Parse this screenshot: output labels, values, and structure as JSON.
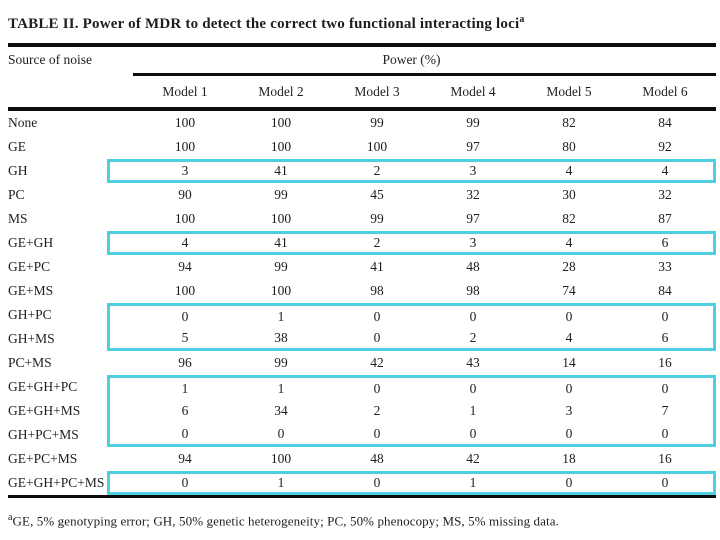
{
  "title": {
    "text": "TABLE II. Power of MDR to detect the correct two functional interacting loci",
    "superscript": "a"
  },
  "header": {
    "row_label": "Source of noise",
    "group_label": "Power (%)",
    "columns": [
      "Model 1",
      "Model 2",
      "Model 3",
      "Model 4",
      "Model 5",
      "Model 6"
    ]
  },
  "chart_data": {
    "type": "table",
    "title": "TABLE II. Power of MDR to detect the correct two functional interacting loci",
    "column_group_label": "Power (%)",
    "columns": [
      "Source of noise",
      "Model 1",
      "Model 2",
      "Model 3",
      "Model 4",
      "Model 5",
      "Model 6"
    ],
    "rows": [
      {
        "label": "None",
        "values": [
          100,
          100,
          99,
          99,
          82,
          84
        ],
        "highlighted": false
      },
      {
        "label": "GE",
        "values": [
          100,
          100,
          100,
          97,
          80,
          92
        ],
        "highlighted": false
      },
      {
        "label": "GH",
        "values": [
          3,
          41,
          2,
          3,
          4,
          4
        ],
        "highlighted": true
      },
      {
        "label": "PC",
        "values": [
          90,
          99,
          45,
          32,
          30,
          32
        ],
        "highlighted": false
      },
      {
        "label": "MS",
        "values": [
          100,
          100,
          99,
          97,
          82,
          87
        ],
        "highlighted": false
      },
      {
        "label": "GE+GH",
        "values": [
          4,
          41,
          2,
          3,
          4,
          6
        ],
        "highlighted": true
      },
      {
        "label": "GE+PC",
        "values": [
          94,
          99,
          41,
          48,
          28,
          33
        ],
        "highlighted": false
      },
      {
        "label": "GE+MS",
        "values": [
          100,
          100,
          98,
          98,
          74,
          84
        ],
        "highlighted": false
      },
      {
        "label": "GH+PC",
        "values": [
          0,
          1,
          0,
          0,
          0,
          0
        ],
        "highlighted": true
      },
      {
        "label": "GH+MS",
        "values": [
          5,
          38,
          0,
          2,
          4,
          6
        ],
        "highlighted": true
      },
      {
        "label": "PC+MS",
        "values": [
          96,
          99,
          42,
          43,
          14,
          16
        ],
        "highlighted": false
      },
      {
        "label": "GE+GH+PC",
        "values": [
          1,
          1,
          0,
          0,
          0,
          0
        ],
        "highlighted": true
      },
      {
        "label": "GE+GH+MS",
        "values": [
          6,
          34,
          2,
          1,
          3,
          7
        ],
        "highlighted": true
      },
      {
        "label": "GH+PC+MS",
        "values": [
          0,
          0,
          0,
          0,
          0,
          0
        ],
        "highlighted": true
      },
      {
        "label": "GE+PC+MS",
        "values": [
          94,
          100,
          48,
          42,
          18,
          16
        ],
        "highlighted": false
      },
      {
        "label": "GE+GH+PC+MS",
        "values": [
          0,
          1,
          0,
          1,
          0,
          0
        ],
        "highlighted": true
      }
    ]
  },
  "footnote": {
    "superscript": "a",
    "text": "GE, 5% genotyping error; GH, 50% genetic heterogeneity; PC, 50% phenocopy; MS, 5% missing data."
  },
  "colors": {
    "highlight_box": "#4dcfe0",
    "rule": "#0d0d0d",
    "text": "#1e1e1e"
  }
}
